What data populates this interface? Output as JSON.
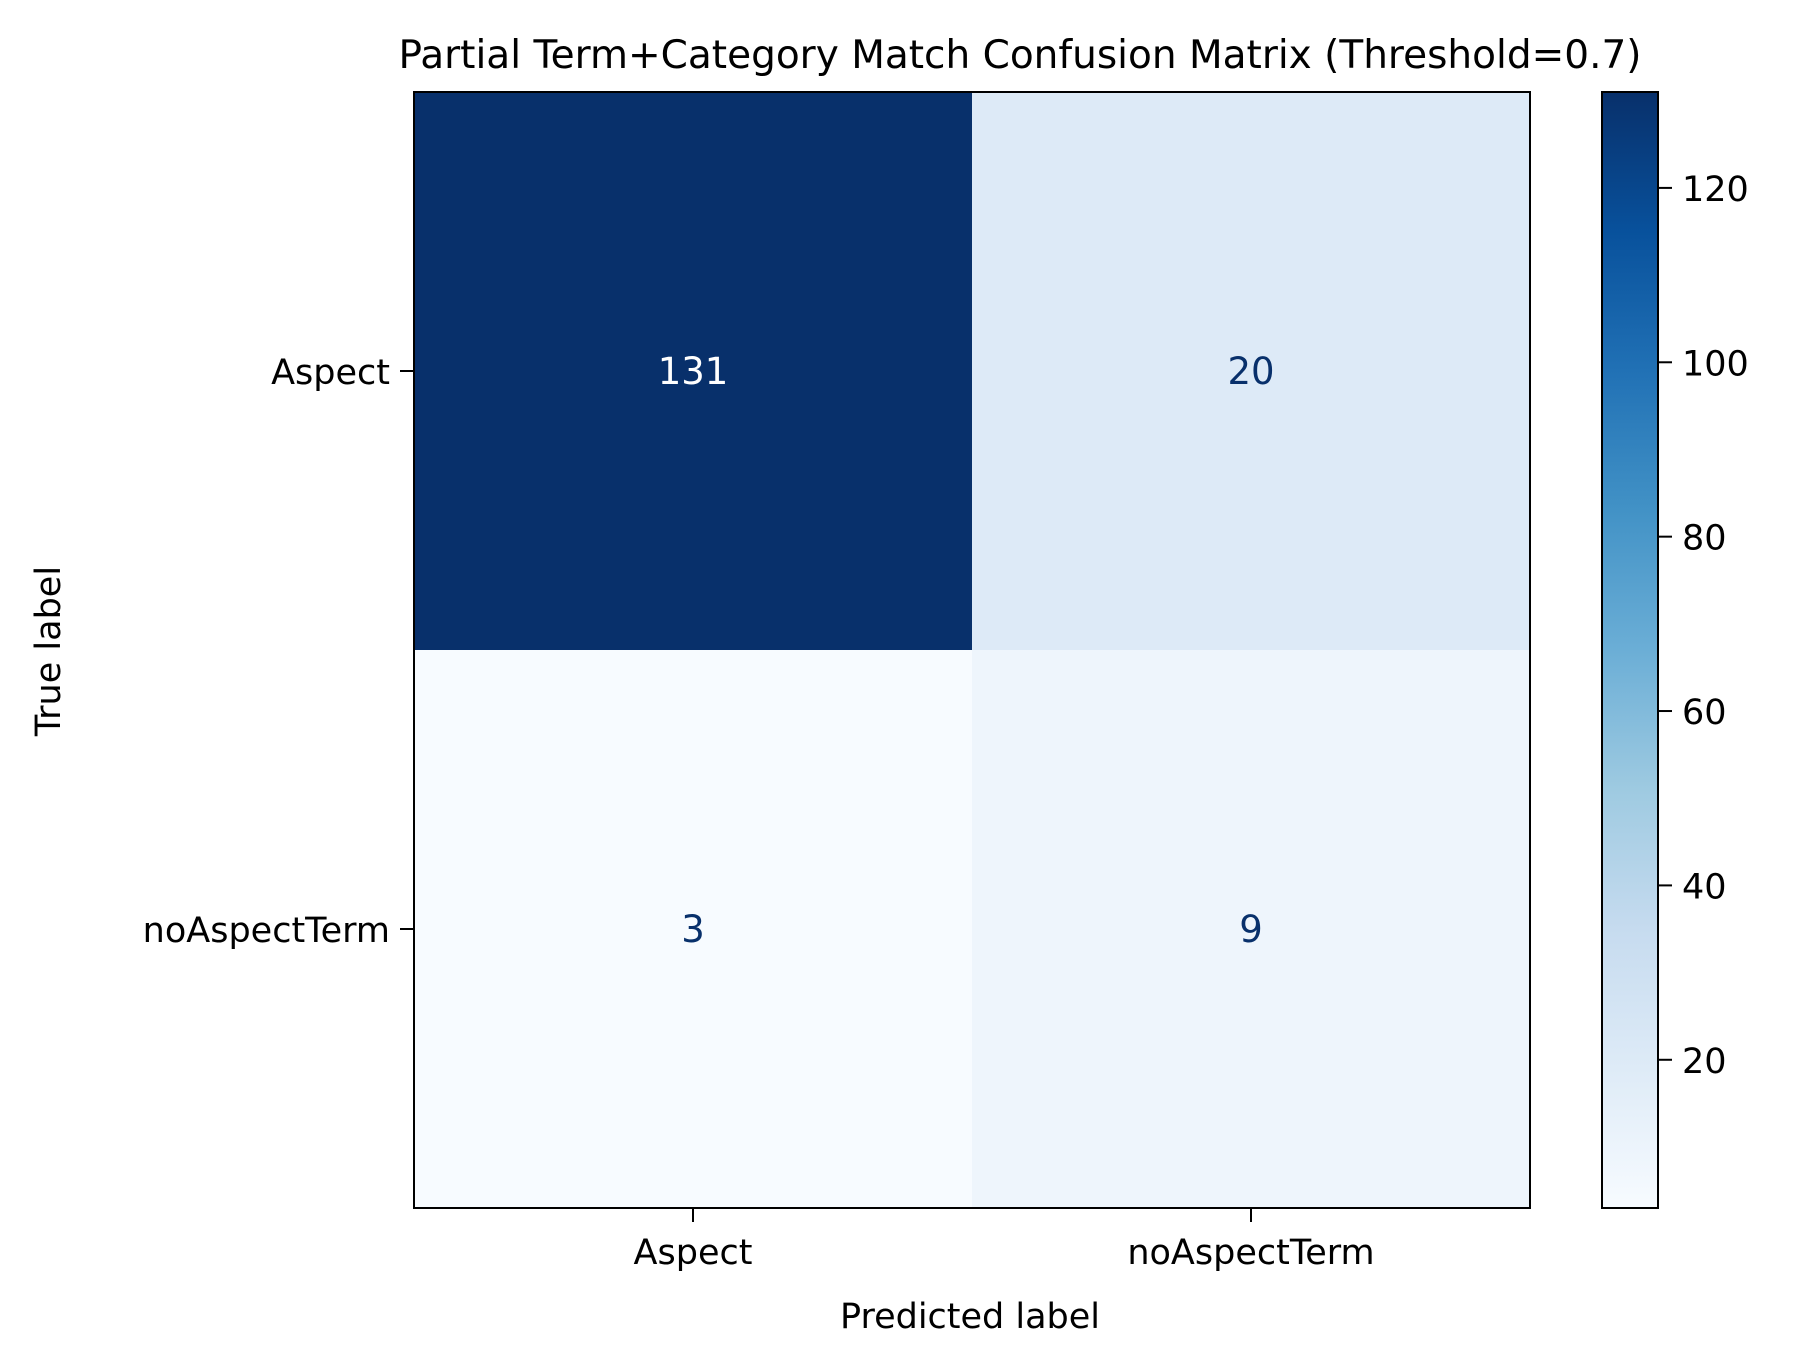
{
  "chart_data": {
    "type": "heatmap",
    "title": "Partial Term+Category Match Confusion Matrix (Threshold=0.7)",
    "xlabel": "Predicted label",
    "ylabel": "True label",
    "x_categories": [
      "Aspect",
      "noAspectTerm"
    ],
    "y_categories": [
      "Aspect",
      "noAspectTerm"
    ],
    "matrix": [
      [
        131,
        20
      ],
      [
        3,
        9
      ]
    ],
    "colormap": "Blues",
    "colorbar": {
      "min": 3,
      "max": 131,
      "ticks": [
        20,
        40,
        60,
        80,
        100,
        120
      ]
    },
    "colors": {
      "dark_cell_text": "#ffffff",
      "light_cell_text": "#08306b"
    }
  }
}
